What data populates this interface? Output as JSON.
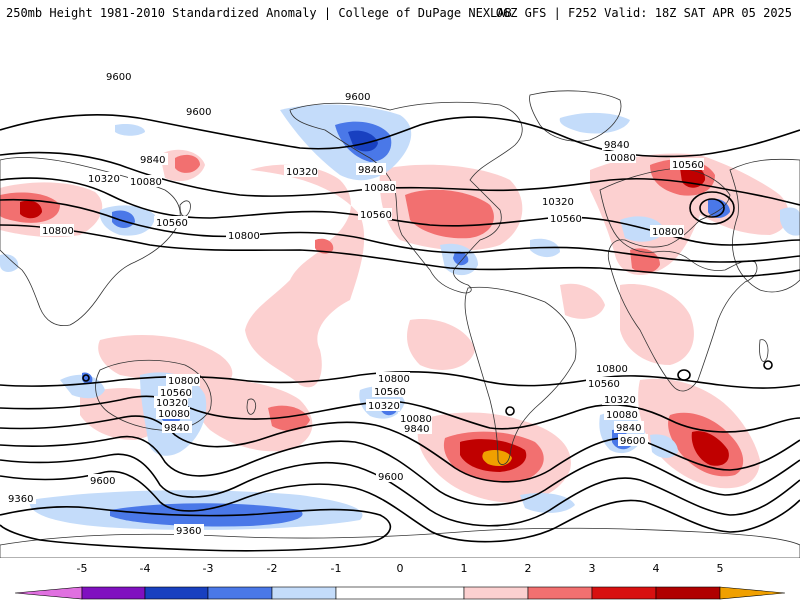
{
  "header": {
    "title_left": "250mb Height 1981-2010 Standardized Anomaly | College of DuPage NEXLAB",
    "title_right": "06Z GFS | F252 Valid: 18Z SAT APR 05 2025"
  },
  "colors": {
    "neg5": "#e070e0",
    "neg4": "#8010c0",
    "neg3": "#1840c0",
    "neg2": "#4a78e8",
    "neg1": "#c4dcfa",
    "zero": "#ffffff",
    "pos1": "#fcd0d0",
    "pos2": "#f27070",
    "pos3": "#d81010",
    "pos4": "#b00000",
    "pos5": "#f0a000"
  },
  "colorbar": {
    "ticks": [
      "-5",
      "-4",
      "-3",
      "-2",
      "-1",
      "0",
      "1",
      "2",
      "3",
      "4",
      "5"
    ]
  },
  "contour_labels": {
    "north": [
      "9600",
      "9600",
      "9600",
      "9840",
      "10320",
      "10080",
      "10320",
      "10800",
      "10560",
      "9840",
      "10080",
      "10560",
      "10800",
      "10320",
      "10560",
      "9840",
      "10080",
      "10560",
      "10800"
    ],
    "south": [
      "10800",
      "10560",
      "10320",
      "10080",
      "9840",
      "9600",
      "10800",
      "10560",
      "10320",
      "10080",
      "9840",
      "10800",
      "10560",
      "10320",
      "10080",
      "9840",
      "9600",
      "9600",
      "9360",
      "9360"
    ]
  }
}
